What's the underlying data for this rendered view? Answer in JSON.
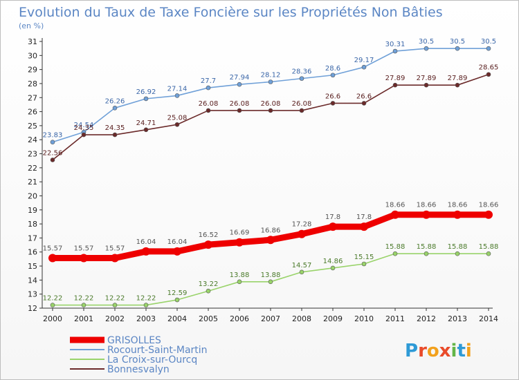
{
  "chart_data": {
    "type": "line",
    "title": "Evolution du Taux de Taxe Foncière sur les Propriétés Non Bâties",
    "subtitle": "(en %)",
    "x": [
      "2000",
      "2001",
      "2002",
      "2003",
      "2004",
      "2005",
      "2006",
      "2007",
      "2008",
      "2009",
      "2010",
      "2011",
      "2012",
      "2013",
      "2014"
    ],
    "ylim": [
      12,
      31
    ],
    "yticks": [
      12,
      13,
      14,
      15,
      16,
      17,
      18,
      19,
      20,
      21,
      22,
      23,
      24,
      25,
      26,
      27,
      28,
      29,
      30,
      31
    ],
    "grid": false,
    "legend_position": "bottom-left",
    "series": [
      {
        "name": "GRISOLLES",
        "color": "#ee0000",
        "values": [
          15.57,
          15.57,
          15.57,
          16.04,
          16.04,
          16.52,
          16.69,
          16.86,
          17.28,
          17.8,
          17.8,
          18.66,
          18.66,
          18.66,
          18.66
        ],
        "labels": [
          "15.57",
          "15.57",
          "15.57",
          "16.04",
          "16.04",
          "16.52",
          "16.69",
          "16.86",
          "17.28",
          "17.8",
          "17.8",
          "18.66",
          "18.66",
          "18.66",
          "18.66"
        ]
      },
      {
        "name": "Rocourt-Saint-Martin",
        "color": "#6fa0d8",
        "values": [
          23.83,
          24.54,
          26.26,
          26.92,
          27.14,
          27.7,
          27.94,
          28.12,
          28.36,
          28.6,
          29.17,
          30.31,
          30.5,
          30.5,
          30.5
        ],
        "labels": [
          "23.83",
          "24.54",
          "26.26",
          "26.92",
          "27.14",
          "27.7",
          "27.94",
          "28.12",
          "28.36",
          "28.6",
          "29.17",
          "30.31",
          "30.5",
          "30.5",
          "30.5"
        ]
      },
      {
        "name": "La Croix-sur-Ourcq",
        "color": "#99d36a",
        "values": [
          12.22,
          12.22,
          12.22,
          12.22,
          12.59,
          13.22,
          13.88,
          13.88,
          14.57,
          14.86,
          15.15,
          15.88,
          15.88,
          15.88,
          15.88
        ],
        "labels": [
          "12.22",
          "12.22",
          "12.22",
          "12.22",
          "12.59",
          "13.22",
          "13.88",
          "13.88",
          "14.57",
          "14.86",
          "15.15",
          "15.88",
          "15.88",
          "15.88",
          "15.88"
        ]
      },
      {
        "name": "Bonnesvalyn",
        "color": "#6b2a2a",
        "values": [
          22.56,
          24.35,
          24.35,
          24.71,
          25.08,
          26.08,
          26.08,
          26.08,
          26.08,
          26.6,
          26.6,
          27.89,
          27.89,
          27.89,
          28.65
        ],
        "labels": [
          "22.56",
          "24.35",
          "24.35",
          "24.71",
          "25.08",
          "26.08",
          "26.08",
          "26.08",
          "26.08",
          "26.6",
          "26.6",
          "27.89",
          "27.89",
          "27.89",
          "28.65"
        ]
      }
    ]
  },
  "logo": {
    "letters": [
      "P",
      "r",
      "o",
      "x",
      "i",
      "t",
      "i"
    ],
    "colors": [
      "#2e9ad6",
      "#e94b2a",
      "#f2a11d",
      "#e94b2a",
      "#63b548",
      "#2e9ad6",
      "#f2a11d"
    ]
  }
}
